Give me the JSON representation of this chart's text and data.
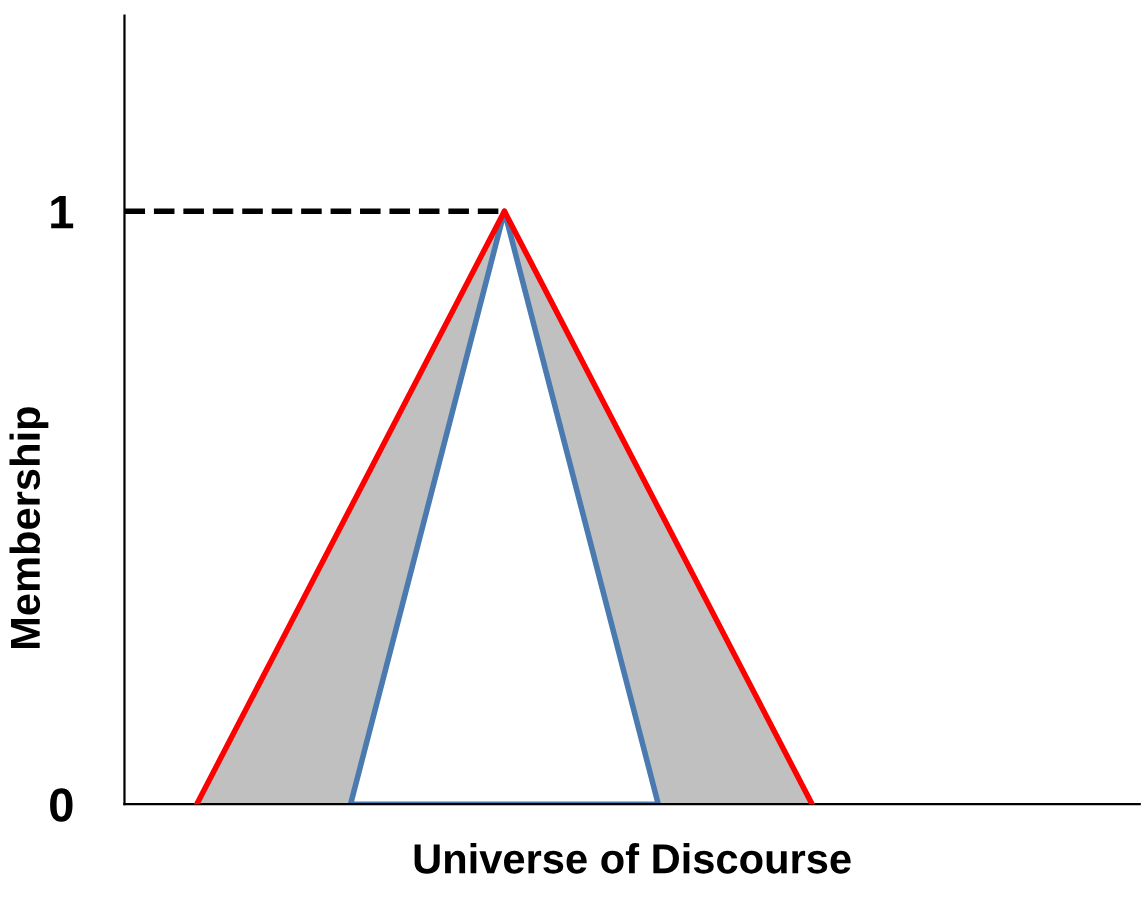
{
  "chart_data": {
    "type": "line",
    "xlabel": "Universe of Discourse",
    "ylabel": "Membership",
    "categories": [
      null,
      null,
      null,
      null,
      null,
      null,
      null,
      null,
      null
    ],
    "series": [
      {
        "color": "#ff0000",
        "values": [
          0,
          0.25,
          0.5,
          0.75,
          1,
          0.75,
          0.5,
          0.25,
          0
        ],
        "lower": [
          0,
          0,
          0,
          0.5,
          1,
          0.5,
          0,
          0,
          0
        ],
        "upper": [
          0,
          0.25,
          0.5,
          0.75,
          1,
          0.75,
          0.5,
          0.25,
          0
        ]
      },
      {
        "type": "area",
        "color": "#4a7ab0",
        "values": [
          null,
          null,
          0,
          0.5,
          1,
          0.5,
          0,
          null,
          null
        ]
      }
    ],
    "ylim": [
      0,
      1.33
    ],
    "yticks": [
      0,
      1
    ],
    "tick_labels": "y",
    "grid": false,
    "legend": false,
    "ref_lines": [
      {
        "axis": "y",
        "value": 1,
        "color": "#000000",
        "line_style": "dashed"
      }
    ]
  }
}
